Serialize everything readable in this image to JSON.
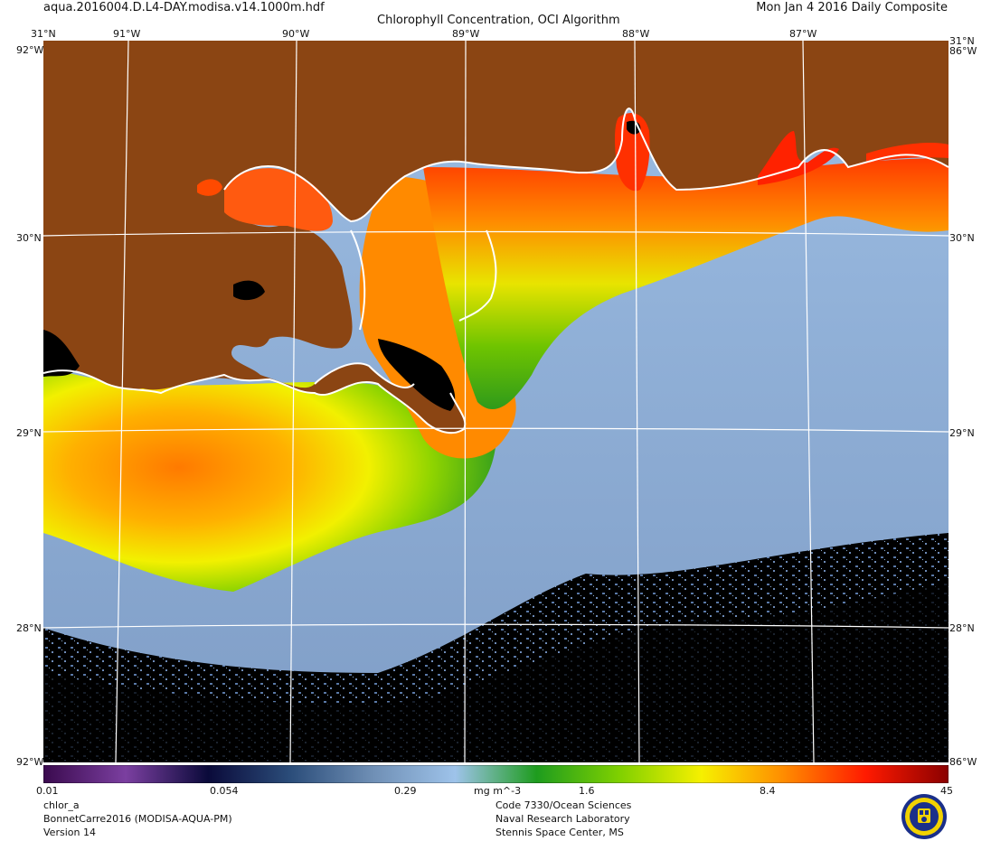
{
  "header": {
    "filename": "aqua.2016004.D.L4-DAY.modisa.v14.1000m.hdf",
    "title": "Chlorophyll Concentration, OCI Algorithm",
    "date": "Mon Jan  4 2016 Daily Composite"
  },
  "axes": {
    "top_lon": [
      "91°W",
      "90°W",
      "89°W",
      "88°W",
      "87°W"
    ],
    "lat_labels": [
      "31°N",
      "30°N",
      "29°N",
      "28°N"
    ],
    "corner_left": "31°N",
    "corner_right": "31°N",
    "edge_lon_left": "92°W",
    "edge_lon_right": "86°W"
  },
  "colorbar": {
    "ticks": [
      "0.01",
      "0.054",
      "0.29",
      "1.6",
      "8.4",
      "45"
    ],
    "units": "mg m^-3",
    "colors": [
      "#3a0a4e",
      "#7b3fa0",
      "#0a0a3a",
      "#2b4d7a",
      "#6f8fb5",
      "#9ec3ea",
      "#1e9c1e",
      "#7fd000",
      "#f6f000",
      "#ff8c00",
      "#ff1a00",
      "#8a0000"
    ]
  },
  "footer_left": {
    "product": "chlor_a",
    "region": "BonnetCarre2016 (MODISA-AQUA-PM)",
    "version": "Version 14"
  },
  "footer_right": {
    "line1": "Code 7330/Ocean Sciences",
    "line2": "Naval Research Laboratory",
    "line3": "Stennis Space Center, MS"
  },
  "map_colors": {
    "land": "#8b4513",
    "no_data": "#000000",
    "coastline": "#ffffff",
    "grid": "#ffffff"
  }
}
